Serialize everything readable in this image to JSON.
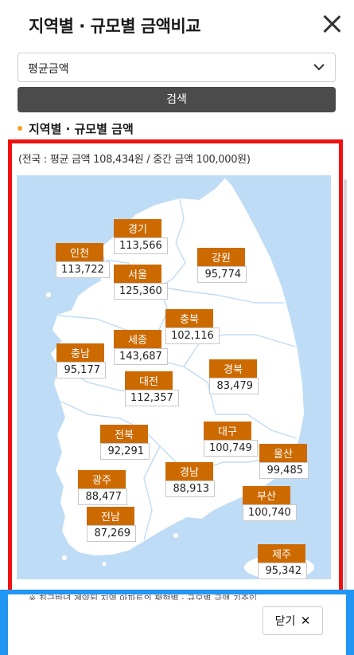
{
  "header": {
    "title": "지역별 · 규모별 금액비교",
    "close_icon": "close-icon"
  },
  "filter": {
    "selected": "평균금액",
    "chevron_icon": "chevron-down-icon"
  },
  "search": {
    "label": "검색"
  },
  "section": {
    "title": "지역별 · 규모별 금액"
  },
  "map": {
    "summary": "(전국 : 평균 금액 108,434원 / 중간 금액 100,000원)",
    "regions": {
      "gyeonggi": {
        "name": "경기",
        "value": "113,566"
      },
      "incheon": {
        "name": "인천",
        "value": "113,722"
      },
      "seoul": {
        "name": "서울",
        "value": "125,360"
      },
      "gangwon": {
        "name": "강원",
        "value": "95,774"
      },
      "chungbuk": {
        "name": "충북",
        "value": "102,116"
      },
      "chungnam": {
        "name": "충남",
        "value": "95,177"
      },
      "sejong": {
        "name": "세종",
        "value": "143,687"
      },
      "gyeongbuk": {
        "name": "경북",
        "value": "83,479"
      },
      "daejeon": {
        "name": "대전",
        "value": "112,357"
      },
      "jeonbuk": {
        "name": "전북",
        "value": "92,291"
      },
      "daegu": {
        "name": "대구",
        "value": "100,749"
      },
      "ulsan": {
        "name": "울산",
        "value": "99,485"
      },
      "gwangju": {
        "name": "광주",
        "value": "88,477"
      },
      "gyeongnam": {
        "name": "경남",
        "value": "88,913"
      },
      "busan": {
        "name": "부산",
        "value": "100,740"
      },
      "jeonnam": {
        "name": "전남",
        "value": "87,269"
      },
      "jeju": {
        "name": "제주",
        "value": "95,342"
      }
    },
    "colors": {
      "label_bg": "#cc6a00",
      "sea": "#bfdcf6",
      "land": "#ffffff",
      "highlight_border": "#f01212"
    }
  },
  "footer": {
    "note": "※ 최근반년 계약된 지역 아파트의 평형별 · 규모별 금액 기준입",
    "close_label": "닫기",
    "close_icon": "close-x-icon"
  }
}
